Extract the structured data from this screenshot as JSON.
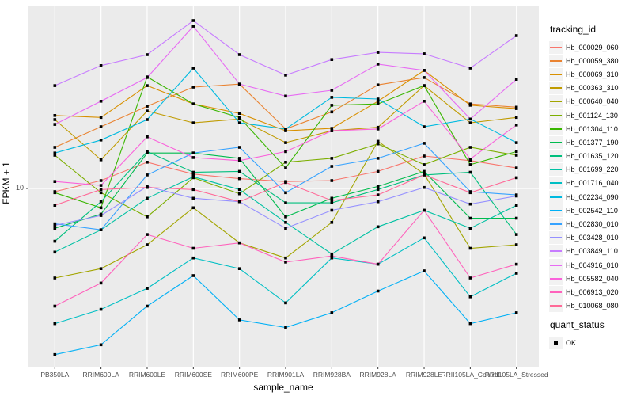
{
  "figure": {
    "x_axis_title": "sample_name",
    "y_axis_title": "FPKM + 1",
    "y_tick_label": "10",
    "legend_tracking_title": "tracking_id",
    "legend_quant_title": "quant_status",
    "legend_quant_item": "OK",
    "colors": {
      "panel_bg": "#EBEBEB",
      "grid": "#FFFFFF",
      "axis_text": "#4D4D4D",
      "tick_mark": "#333333",
      "legend_key_bg": "#F2F2F2",
      "marker": "#000000"
    }
  },
  "chart_data": {
    "type": "line",
    "title": "",
    "xlabel": "sample_name",
    "ylabel": "FPKM + 1",
    "y_scale": "log10",
    "ylim": [
      1.8,
      58
    ],
    "y_ticks": [
      10
    ],
    "grid": true,
    "legend_position": "right",
    "marker": "filled-black-square",
    "quant_status_legend": [
      {
        "label": "OK",
        "shape": "filled-square"
      }
    ],
    "x": [
      "PB350LA",
      "RRIM600LA",
      "RRIM600LE",
      "RRIM600SE",
      "RRIM600PE",
      "RRIM901LA",
      "RRIM928BA",
      "RRIM928LA",
      "RRIM928LE",
      "RRII105LA_Control",
      "RRII105LA_Stressed"
    ],
    "series": [
      {
        "name": "Hb_000029_060",
        "color": "#F8766D",
        "values": [
          9.7,
          10.8,
          12.9,
          11.5,
          11.0,
          10.7,
          10.8,
          11.8,
          13.7,
          13.1,
          12.2
        ]
      },
      {
        "name": "Hb_000059_380",
        "color": "#EA8331",
        "values": [
          14.9,
          18.2,
          22.2,
          26.7,
          27.5,
          17.8,
          21.0,
          27.3,
          29.3,
          22.7,
          22.0
        ]
      },
      {
        "name": "Hb_000069_310",
        "color": "#D89000",
        "values": [
          20.3,
          19.9,
          27.1,
          22.7,
          20.7,
          17.5,
          17.9,
          23.3,
          31.4,
          22.4,
          21.7
        ]
      },
      {
        "name": "Hb_000363_310",
        "color": "#C09B00",
        "values": [
          19.5,
          13.2,
          21.2,
          18.9,
          19.6,
          15.6,
          17.5,
          18.1,
          27.1,
          18.9,
          19.9
        ]
      },
      {
        "name": "Hb_000640_040",
        "color": "#A3A500",
        "values": [
          4.2,
          4.6,
          5.8,
          8.3,
          5.9,
          5.1,
          7.2,
          15.8,
          11.5,
          5.6,
          5.8
        ]
      },
      {
        "name": "Hb_001124_130",
        "color": "#7CAE00",
        "values": [
          13.8,
          9.6,
          7.6,
          11.1,
          9.5,
          12.9,
          13.4,
          15.4,
          12.6,
          14.9,
          13.8
        ]
      },
      {
        "name": "Hb_001304_110",
        "color": "#39B600",
        "values": [
          9.6,
          8.3,
          29.5,
          22.7,
          19.9,
          12.2,
          22.4,
          22.7,
          27.1,
          12.6,
          14.3
        ]
      },
      {
        "name": "Hb_001377_190",
        "color": "#00BB4E",
        "values": [
          6.8,
          7.8,
          14.1,
          14.1,
          13.4,
          7.6,
          9.1,
          10.2,
          11.8,
          7.5,
          7.5
        ]
      },
      {
        "name": "Hb_001635_120",
        "color": "#00BF7D",
        "values": [
          6.0,
          8.8,
          14.3,
          11.7,
          11.8,
          8.7,
          8.7,
          9.9,
          11.4,
          11.7,
          6.4
        ]
      },
      {
        "name": "Hb_001699_220",
        "color": "#00C1A3",
        "values": [
          5.4,
          6.7,
          9.1,
          11.2,
          9.9,
          7.2,
          5.3,
          6.9,
          8.1,
          6.8,
          8.5
        ]
      },
      {
        "name": "Hb_001716_040",
        "color": "#00BFC4",
        "values": [
          2.7,
          3.1,
          3.8,
          5.1,
          4.6,
          3.3,
          5.1,
          4.8,
          6.2,
          3.5,
          4.4
        ]
      },
      {
        "name": "Hb_002234_090",
        "color": "#00BAE0",
        "values": [
          14.1,
          16.0,
          19.5,
          32.1,
          18.9,
          17.8,
          24.2,
          23.8,
          18.2,
          19.6,
          15.6
        ]
      },
      {
        "name": "Hb_002542_110",
        "color": "#00B0F6",
        "values": [
          2.0,
          2.2,
          3.2,
          4.3,
          2.8,
          2.6,
          3.0,
          3.7,
          4.5,
          2.7,
          3.0
        ]
      },
      {
        "name": "Hb_002830_010",
        "color": "#35A2FF",
        "values": [
          7.1,
          6.7,
          11.4,
          14.1,
          14.9,
          9.6,
          12.4,
          13.4,
          15.5,
          9.7,
          9.4
        ]
      },
      {
        "name": "Hb_003428_010",
        "color": "#9590FF",
        "values": [
          7.0,
          7.7,
          10.2,
          9.1,
          8.8,
          6.8,
          8.1,
          8.8,
          10.1,
          8.6,
          9.3
        ]
      },
      {
        "name": "Hb_003849_110",
        "color": "#C77CFF",
        "values": [
          27.1,
          32.9,
          36.6,
          50.9,
          36.6,
          30.0,
          34.9,
          37.4,
          36.9,
          32.1,
          44.0
        ]
      },
      {
        "name": "Hb_004916_010",
        "color": "#E76BF3",
        "values": [
          18.6,
          23.3,
          29.3,
          48.2,
          27.5,
          24.5,
          25.9,
          33.4,
          31.4,
          19.6,
          28.8
        ]
      },
      {
        "name": "Hb_005582_040",
        "color": "#FA62DB",
        "values": [
          10.7,
          10.3,
          16.5,
          13.5,
          13.1,
          14.3,
          17.5,
          17.8,
          23.3,
          13.3,
          18.5
        ]
      },
      {
        "name": "Hb_006913_020",
        "color": "#FF62BC",
        "values": [
          3.2,
          4.0,
          6.4,
          5.6,
          5.9,
          4.9,
          5.2,
          4.8,
          8.1,
          4.2,
          4.8
        ]
      },
      {
        "name": "Hb_010068_080",
        "color": "#FF6A98",
        "values": [
          8.5,
          9.9,
          10.1,
          9.9,
          8.8,
          10.6,
          8.9,
          9.4,
          11.4,
          9.6,
          11.1
        ]
      }
    ]
  }
}
